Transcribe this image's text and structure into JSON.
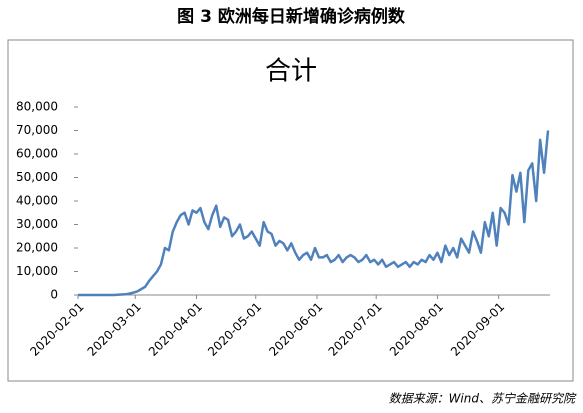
{
  "page_title": "图 3  欧洲每日新增确诊病例数",
  "source": "数据来源：Wind、苏宁金融研究院",
  "chart_data": {
    "type": "line",
    "title": "合计",
    "xlim": [
      "2020-02-01",
      "2020-09-27"
    ],
    "xticks": [
      "2020-02-01",
      "2020-03-01",
      "2020-04-01",
      "2020-05-01",
      "2020-06-01",
      "2020-07-01",
      "2020-08-01",
      "2020-09-01"
    ],
    "ylim": [
      0,
      80000
    ],
    "yticks": [
      0,
      {
        "value": 10000,
        "label": "10,000"
      },
      {
        "value": 20000,
        "label": "20,000"
      },
      {
        "value": 30000,
        "label": "30,000"
      },
      {
        "value": 40000,
        "label": "40,000"
      },
      {
        "value": 50000,
        "label": "50,000"
      },
      {
        "value": 60000,
        "label": "60,000"
      },
      {
        "value": 70000,
        "label": "70,000"
      },
      {
        "value": 80000,
        "label": "80,000"
      }
    ],
    "grid": false,
    "x": [
      "2020-02-01",
      "2020-02-03",
      "2020-02-05",
      "2020-02-07",
      "2020-02-09",
      "2020-02-11",
      "2020-02-13",
      "2020-02-15",
      "2020-02-17",
      "2020-02-19",
      "2020-02-21",
      "2020-02-23",
      "2020-02-25",
      "2020-02-27",
      "2020-02-29",
      "2020-03-02",
      "2020-03-04",
      "2020-03-06",
      "2020-03-08",
      "2020-03-10",
      "2020-03-12",
      "2020-03-14",
      "2020-03-16",
      "2020-03-18",
      "2020-03-20",
      "2020-03-22",
      "2020-03-24",
      "2020-03-26",
      "2020-03-28",
      "2020-03-30",
      "2020-04-01",
      "2020-04-03",
      "2020-04-05",
      "2020-04-07",
      "2020-04-09",
      "2020-04-11",
      "2020-04-13",
      "2020-04-15",
      "2020-04-17",
      "2020-04-19",
      "2020-04-21",
      "2020-04-23",
      "2020-04-25",
      "2020-04-27",
      "2020-04-29",
      "2020-05-01",
      "2020-05-03",
      "2020-05-05",
      "2020-05-07",
      "2020-05-09",
      "2020-05-11",
      "2020-05-13",
      "2020-05-15",
      "2020-05-17",
      "2020-05-19",
      "2020-05-21",
      "2020-05-23",
      "2020-05-25",
      "2020-05-27",
      "2020-05-29",
      "2020-05-31",
      "2020-06-02",
      "2020-06-04",
      "2020-06-06",
      "2020-06-08",
      "2020-06-10",
      "2020-06-12",
      "2020-06-14",
      "2020-06-16",
      "2020-06-18",
      "2020-06-20",
      "2020-06-22",
      "2020-06-24",
      "2020-06-26",
      "2020-06-28",
      "2020-06-30",
      "2020-07-02",
      "2020-07-04",
      "2020-07-06",
      "2020-07-08",
      "2020-07-10",
      "2020-07-12",
      "2020-07-14",
      "2020-07-16",
      "2020-07-18",
      "2020-07-20",
      "2020-07-22",
      "2020-07-24",
      "2020-07-26",
      "2020-07-28",
      "2020-07-30",
      "2020-08-01",
      "2020-08-03",
      "2020-08-05",
      "2020-08-07",
      "2020-08-09",
      "2020-08-11",
      "2020-08-13",
      "2020-08-15",
      "2020-08-17",
      "2020-08-19",
      "2020-08-21",
      "2020-08-23",
      "2020-08-25",
      "2020-08-27",
      "2020-08-29",
      "2020-08-31",
      "2020-09-02",
      "2020-09-04",
      "2020-09-06",
      "2020-09-08",
      "2020-09-10",
      "2020-09-12",
      "2020-09-14",
      "2020-09-16",
      "2020-09-18",
      "2020-09-20",
      "2020-09-22",
      "2020-09-24",
      "2020-09-26"
    ],
    "series": [
      {
        "color": "#4f81bd",
        "values": [
          0,
          0,
          0,
          0,
          0,
          0,
          0,
          0,
          0,
          0,
          100,
          200,
          300,
          600,
          1000,
          1500,
          2500,
          3500,
          6000,
          8000,
          10000,
          13000,
          20000,
          19000,
          27000,
          31000,
          34000,
          35000,
          30000,
          36000,
          35000,
          37000,
          31000,
          28000,
          34000,
          38000,
          29000,
          33000,
          32000,
          25000,
          27000,
          30000,
          24000,
          25000,
          27000,
          24000,
          21000,
          31000,
          27000,
          26000,
          21000,
          23000,
          22000,
          19000,
          22000,
          18000,
          15000,
          17000,
          18000,
          15000,
          20000,
          16000,
          16000,
          17000,
          14000,
          15000,
          17000,
          14000,
          16000,
          17000,
          16000,
          14000,
          15000,
          17000,
          14000,
          15000,
          13000,
          15000,
          12000,
          13000,
          14000,
          12000,
          13000,
          14000,
          12000,
          14000,
          13000,
          15000,
          14000,
          17000,
          15000,
          18000,
          14000,
          21000,
          17000,
          20000,
          16000,
          24000,
          21000,
          18000,
          27000,
          23000,
          18000,
          31000,
          25000,
          35000,
          21000,
          37000,
          35000,
          30000,
          51000,
          44000,
          52000,
          31000,
          53000,
          56000,
          40000,
          66000,
          52000,
          70000
        ]
      }
    ]
  }
}
